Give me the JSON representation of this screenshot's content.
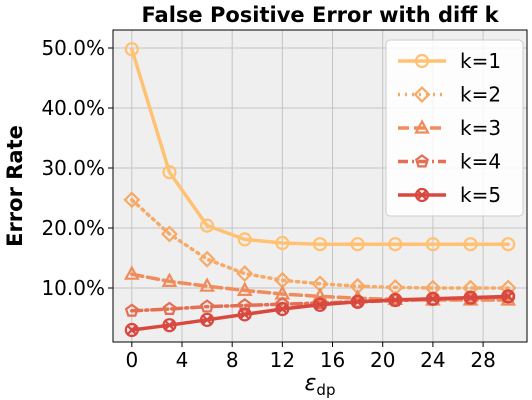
{
  "chart_data": {
    "type": "line",
    "title": "False Positive Error with  diff k",
    "xlabel_symbol": "ε",
    "xlabel_sub": "dp",
    "ylabel": "Error Rate",
    "x_ticks": [
      0,
      4,
      8,
      12,
      16,
      20,
      24,
      28
    ],
    "y_ticks": [
      10,
      20,
      30,
      40,
      50
    ],
    "y_tick_labels": [
      "10.0%",
      "20.0%",
      "30.0%",
      "40.0%",
      "50.0%"
    ],
    "xlim": [
      -1.5,
      31.5
    ],
    "ylim": [
      1,
      53
    ],
    "grid": true,
    "legend_position": "top-right",
    "x": [
      0,
      3,
      6,
      9,
      12,
      15,
      18,
      21,
      24,
      27,
      30
    ],
    "series": [
      {
        "name": "k=1",
        "color": "#ffc273",
        "dash": "solid",
        "marker": "circle",
        "values": [
          49.8,
          29.3,
          20.4,
          18.1,
          17.5,
          17.3,
          17.3,
          17.3,
          17.3,
          17.3,
          17.3
        ]
      },
      {
        "name": "k=2",
        "color": "#f7a966",
        "dash": "dotted",
        "marker": "diamond",
        "values": [
          24.7,
          19.0,
          14.8,
          12.4,
          11.3,
          10.7,
          10.3,
          10.1,
          10.0,
          10.0,
          10.0
        ]
      },
      {
        "name": "k=3",
        "color": "#f08c5a",
        "dash": "dashed",
        "marker": "triangle",
        "values": [
          12.3,
          11.1,
          10.3,
          9.6,
          9.0,
          8.6,
          8.3,
          8.1,
          8.0,
          8.0,
          8.0
        ]
      },
      {
        "name": "k=4",
        "color": "#e46f52",
        "dash": "dashdot",
        "marker": "pentagon",
        "values": [
          6.2,
          6.5,
          6.9,
          7.1,
          7.3,
          7.5,
          7.7,
          7.9,
          8.1,
          8.3,
          8.5
        ]
      },
      {
        "name": "k=5",
        "color": "#d9483f",
        "dash": "solid",
        "marker": "x",
        "values": [
          3.0,
          3.8,
          4.7,
          5.6,
          6.5,
          7.2,
          7.7,
          8.0,
          8.2,
          8.4,
          8.6
        ]
      }
    ]
  }
}
